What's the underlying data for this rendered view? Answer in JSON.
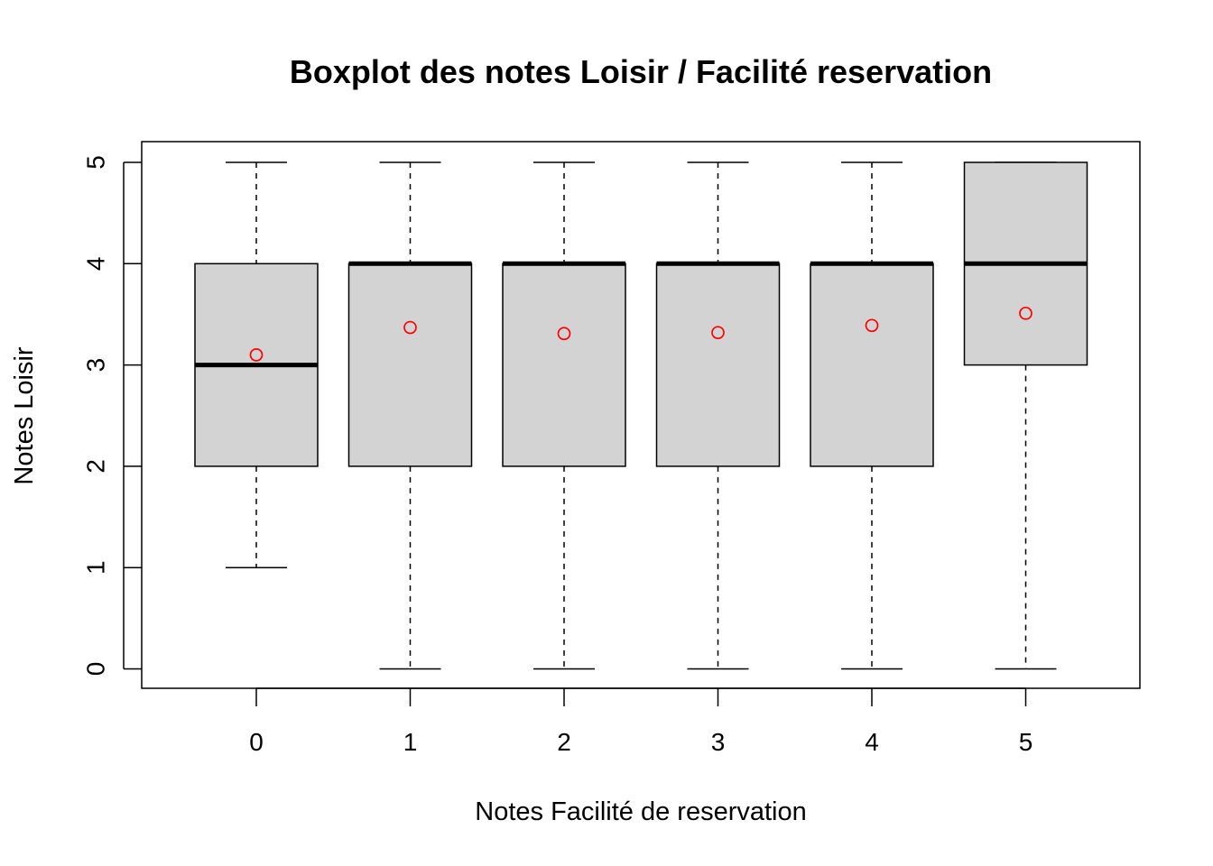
{
  "chart_data": {
    "type": "boxplot",
    "title": "Boxplot des notes Loisir / Facilité reservation",
    "xlabel": "Notes Facilité de reservation",
    "ylabel": "Notes Loisir",
    "categories": [
      "0",
      "1",
      "2",
      "3",
      "4",
      "5"
    ],
    "y_ticks": [
      "0",
      "1",
      "2",
      "3",
      "4",
      "5"
    ],
    "ylim": [
      0,
      5
    ],
    "grid": false,
    "boxes": [
      {
        "category": "0",
        "whisker_low": 1,
        "q1": 2,
        "median": 3,
        "q3": 4,
        "whisker_high": 5,
        "mean": 3.1
      },
      {
        "category": "1",
        "whisker_low": 0,
        "q1": 2,
        "median": 4,
        "q3": 4,
        "whisker_high": 5,
        "mean": 3.37
      },
      {
        "category": "2",
        "whisker_low": 0,
        "q1": 2,
        "median": 4,
        "q3": 4,
        "whisker_high": 5,
        "mean": 3.31
      },
      {
        "category": "3",
        "whisker_low": 0,
        "q1": 2,
        "median": 4,
        "q3": 4,
        "whisker_high": 5,
        "mean": 3.32
      },
      {
        "category": "4",
        "whisker_low": 0,
        "q1": 2,
        "median": 4,
        "q3": 4,
        "whisker_high": 5,
        "mean": 3.39
      },
      {
        "category": "5",
        "whisker_low": 0,
        "q1": 3,
        "median": 4,
        "q3": 5,
        "whisker_high": 5,
        "mean": 3.51
      }
    ],
    "colors": {
      "box_fill": "#d3d3d3",
      "mean_marker": "#ff0000",
      "line": "#000000"
    }
  }
}
